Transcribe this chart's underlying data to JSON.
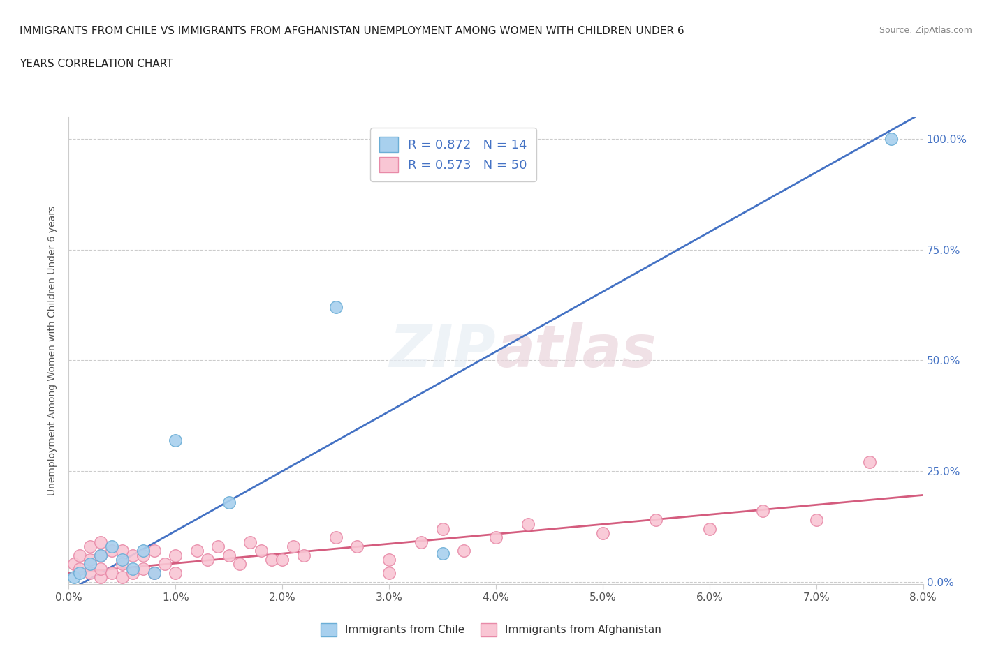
{
  "title_line1": "IMMIGRANTS FROM CHILE VS IMMIGRANTS FROM AFGHANISTAN UNEMPLOYMENT AMONG WOMEN WITH CHILDREN UNDER 6",
  "title_line2": "YEARS CORRELATION CHART",
  "source": "Source: ZipAtlas.com",
  "xlabel_ticks": [
    "0.0%",
    "1.0%",
    "2.0%",
    "3.0%",
    "4.0%",
    "5.0%",
    "6.0%",
    "7.0%",
    "8.0%"
  ],
  "ylabel": "Unemployment Among Women with Children Under 6 years",
  "xlim": [
    0.0,
    0.08
  ],
  "ylim": [
    -0.005,
    1.05
  ],
  "yticks": [
    0.0,
    0.25,
    0.5,
    0.75,
    1.0
  ],
  "ytick_labels": [
    "0.0%",
    "25.0%",
    "50.0%",
    "75.0%",
    "100.0%"
  ],
  "xticks": [
    0.0,
    0.01,
    0.02,
    0.03,
    0.04,
    0.05,
    0.06,
    0.07,
    0.08
  ],
  "chile_color": "#A8D0EE",
  "chile_edge_color": "#6BAED6",
  "afghanistan_color": "#F9C6D4",
  "afghanistan_edge_color": "#E88AA8",
  "regression_chile_color": "#4472C4",
  "regression_afghanistan_color": "#D45C7E",
  "chile_R": 0.872,
  "chile_N": 14,
  "afghanistan_R": 0.573,
  "afghanistan_N": 50,
  "watermark_part1": "ZIP",
  "watermark_part2": "atlas",
  "chile_x": [
    0.0005,
    0.001,
    0.002,
    0.003,
    0.004,
    0.005,
    0.006,
    0.007,
    0.008,
    0.01,
    0.015,
    0.025,
    0.035,
    0.077
  ],
  "chile_y": [
    0.01,
    0.02,
    0.04,
    0.06,
    0.08,
    0.05,
    0.03,
    0.07,
    0.02,
    0.32,
    0.18,
    0.62,
    0.065,
    1.0
  ],
  "afghanistan_x": [
    0.0005,
    0.001,
    0.001,
    0.002,
    0.002,
    0.002,
    0.003,
    0.003,
    0.003,
    0.003,
    0.004,
    0.004,
    0.005,
    0.005,
    0.005,
    0.006,
    0.006,
    0.007,
    0.007,
    0.008,
    0.008,
    0.009,
    0.01,
    0.01,
    0.012,
    0.013,
    0.014,
    0.015,
    0.016,
    0.017,
    0.018,
    0.019,
    0.02,
    0.021,
    0.022,
    0.025,
    0.027,
    0.03,
    0.03,
    0.033,
    0.035,
    0.037,
    0.04,
    0.043,
    0.05,
    0.055,
    0.06,
    0.065,
    0.07,
    0.075
  ],
  "afghanistan_y": [
    0.04,
    0.03,
    0.06,
    0.02,
    0.05,
    0.08,
    0.01,
    0.03,
    0.06,
    0.09,
    0.02,
    0.07,
    0.01,
    0.04,
    0.07,
    0.02,
    0.06,
    0.03,
    0.06,
    0.02,
    0.07,
    0.04,
    0.02,
    0.06,
    0.07,
    0.05,
    0.08,
    0.06,
    0.04,
    0.09,
    0.07,
    0.05,
    0.05,
    0.08,
    0.06,
    0.1,
    0.08,
    0.05,
    0.02,
    0.09,
    0.12,
    0.07,
    0.1,
    0.13,
    0.11,
    0.14,
    0.12,
    0.16,
    0.14,
    0.27
  ],
  "background_color": "#FFFFFF",
  "grid_color": "#CCCCCC",
  "chile_regression_slope": 13.5,
  "chile_regression_intercept": -0.02,
  "afghanistan_regression_slope": 2.2,
  "afghanistan_regression_intercept": 0.02
}
